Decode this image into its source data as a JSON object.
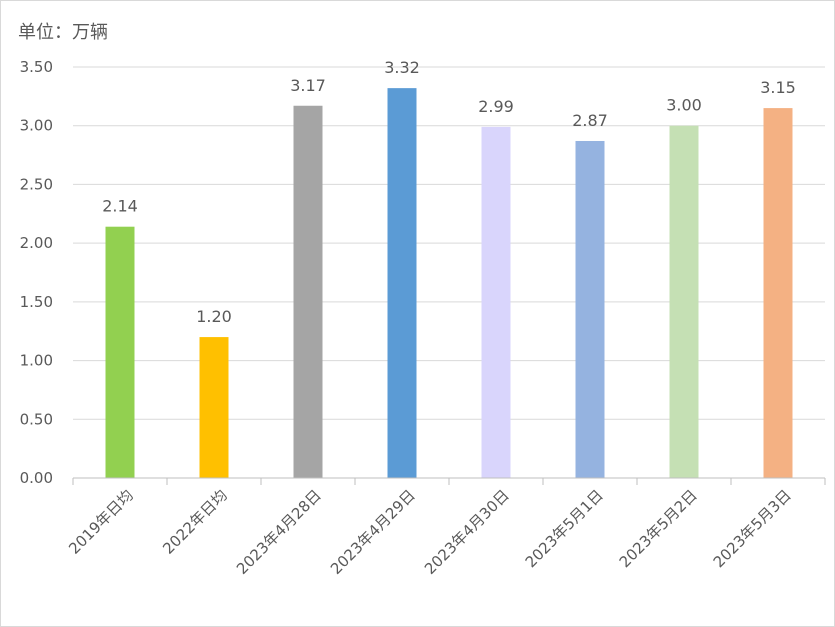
{
  "chart_data": {
    "type": "bar",
    "unit_label": "单位：万辆",
    "categories": [
      "2019年日均",
      "2022年日均",
      "2023年4月28日",
      "2023年4月29日",
      "2023年4月30日",
      "2023年5月1日",
      "2023年5月2日",
      "2023年5月3日"
    ],
    "values": [
      2.14,
      1.2,
      3.17,
      3.32,
      2.99,
      2.87,
      3.0,
      3.15
    ],
    "data_labels": [
      "2.14",
      "1.20",
      "3.17",
      "3.32",
      "2.99",
      "2.87",
      "3.00",
      "3.15"
    ],
    "colors": [
      "#92d050",
      "#ffc000",
      "#a5a5a5",
      "#5b9bd5",
      "#d9d5fc",
      "#95b3e0",
      "#c5e0b4",
      "#f4b183"
    ],
    "yticks": [
      0,
      0.5,
      1,
      1.5,
      2,
      2.5,
      3,
      3.5
    ],
    "ytick_labels": [
      "0.00",
      "0.50",
      "1.00",
      "1.50",
      "2.00",
      "2.50",
      "3.00",
      "3.50"
    ],
    "ylim": [
      0,
      3.5
    ],
    "grid": true,
    "legend": "none"
  }
}
